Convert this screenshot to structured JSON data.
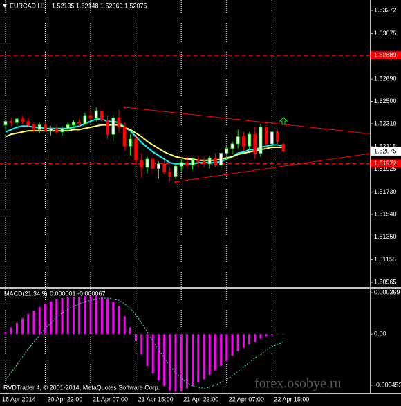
{
  "chart_data": [
    {
      "type": "candlestick",
      "title": "EURCAD,H1",
      "categories": [
        "18 Apr 2014",
        null,
        null,
        null,
        null,
        null,
        null,
        "20 Apr 23:00",
        null,
        null,
        null,
        null,
        null,
        null,
        null,
        "21 Apr 07:00",
        null,
        null,
        null,
        null,
        null,
        null,
        null,
        "21 Apr 15:00",
        null,
        null,
        null,
        null,
        null,
        null,
        null,
        "21 Apr 23:00",
        null,
        null,
        null,
        null,
        null,
        null,
        null,
        "22 Apr 07:00",
        null,
        null,
        null,
        null,
        null,
        null,
        null,
        "22 Apr 15:00",
        null,
        null
      ],
      "open": [
        1.523,
        1.5233,
        1.5232,
        1.5235,
        1.5233,
        1.523,
        1.5226,
        1.523,
        1.5225,
        1.5227,
        1.5224,
        1.5227,
        1.523,
        1.5232,
        1.5231,
        1.5238,
        1.5236,
        1.5242,
        1.5234,
        1.5222,
        1.5236,
        1.5228,
        1.5212,
        1.5218,
        1.52,
        1.5194,
        1.5201,
        1.5193,
        1.5197,
        1.519,
        1.5186,
        1.5195,
        1.5198,
        1.5196,
        1.52,
        1.5199,
        1.5197,
        1.5202,
        1.5196,
        1.5206,
        1.521,
        1.5214,
        1.522,
        1.5212,
        1.5222,
        1.5206,
        1.5228,
        1.5214,
        1.5224,
        1.52135
      ],
      "high": [
        1.5234,
        1.5236,
        1.5236,
        1.5237,
        1.5236,
        1.5232,
        1.5232,
        1.5233,
        1.5229,
        1.523,
        1.5229,
        1.5232,
        1.5234,
        1.5235,
        1.524,
        1.5244,
        1.5245,
        1.5247,
        1.5238,
        1.5238,
        1.5243,
        1.5232,
        1.5222,
        1.5221,
        1.5206,
        1.5203,
        1.5205,
        1.5199,
        1.52,
        1.5194,
        1.5197,
        1.5201,
        1.5203,
        1.5202,
        1.5204,
        1.5203,
        1.5204,
        1.5206,
        1.5208,
        1.5212,
        1.5216,
        1.5226,
        1.5224,
        1.5224,
        1.5228,
        1.5231,
        1.523,
        1.5227,
        1.5226,
        1.52148
      ],
      "low": [
        1.5226,
        1.5229,
        1.523,
        1.5231,
        1.5228,
        1.5224,
        1.5223,
        1.5224,
        1.5221,
        1.5222,
        1.5221,
        1.5225,
        1.5227,
        1.5229,
        1.523,
        1.5234,
        1.5233,
        1.5232,
        1.5218,
        1.5216,
        1.5224,
        1.5208,
        1.5204,
        1.5196,
        1.5185,
        1.5189,
        1.519,
        1.5184,
        1.5188,
        1.5182,
        1.5184,
        1.5191,
        1.5193,
        1.5192,
        1.5194,
        1.5194,
        1.5193,
        1.5194,
        1.5193,
        1.52,
        1.5205,
        1.521,
        1.5208,
        1.5209,
        1.5201,
        1.5203,
        1.521,
        1.5211,
        1.5212,
        1.52069
      ],
      "close": [
        1.5233,
        1.5232,
        1.5235,
        1.5233,
        1.523,
        1.5226,
        1.523,
        1.5225,
        1.5227,
        1.5224,
        1.5227,
        1.523,
        1.5232,
        1.5231,
        1.5238,
        1.5236,
        1.5242,
        1.5234,
        1.5222,
        1.5236,
        1.5228,
        1.5212,
        1.5218,
        1.52,
        1.5194,
        1.5201,
        1.5193,
        1.5197,
        1.519,
        1.5186,
        1.5195,
        1.5198,
        1.5196,
        1.52,
        1.5199,
        1.5197,
        1.5202,
        1.5196,
        1.5206,
        1.521,
        1.5214,
        1.522,
        1.5212,
        1.5222,
        1.5206,
        1.5228,
        1.5214,
        1.5224,
        1.5216,
        1.52075
      ],
      "bull_color": "#00ff00",
      "bear_color": "#ff0000",
      "series": [
        {
          "color": "#00ffff",
          "values": [
            1.5224,
            1.5226,
            1.5228,
            1.5229,
            1.5229,
            1.5228,
            1.5228,
            1.5227,
            1.5227,
            1.5227,
            1.5227,
            1.5227,
            1.5228,
            1.5229,
            1.5231,
            1.5233,
            1.5235,
            1.5235,
            1.5233,
            1.5233,
            1.5232,
            1.5228,
            1.5225,
            1.522,
            1.5215,
            1.5211,
            1.5207,
            1.5204,
            1.5201,
            1.5198,
            1.5197,
            1.5197,
            1.5197,
            1.5197,
            1.5198,
            1.5198,
            1.5198,
            1.5198,
            1.5199,
            1.5201,
            1.5203,
            1.5206,
            1.5207,
            1.5209,
            1.5209,
            1.5211,
            1.5212,
            1.5213,
            1.5213,
            1.5212
          ]
        },
        {
          "color": "#ffff66",
          "values": [
            1.522,
            1.5222,
            1.5223,
            1.5224,
            1.5225,
            1.5225,
            1.5225,
            1.5225,
            1.5225,
            1.5225,
            1.5225,
            1.5225,
            1.5226,
            1.5226,
            1.5227,
            1.5228,
            1.5229,
            1.523,
            1.523,
            1.523,
            1.523,
            1.5228,
            1.5226,
            1.5223,
            1.522,
            1.5216,
            1.5213,
            1.521,
            1.5207,
            1.5205,
            1.5203,
            1.5202,
            1.5201,
            1.5201,
            1.52,
            1.52,
            1.52,
            1.52,
            1.5201,
            1.5202,
            1.5203,
            1.5205,
            1.5206,
            1.5207,
            1.5208,
            1.5209,
            1.521,
            1.5211,
            1.5211,
            1.5211
          ]
        }
      ],
      "levels": [
        1.52889,
        1.51972
      ],
      "level_color": "#ff0000",
      "trendlines": [
        {
          "color": "#ff0000",
          "points": [
            [
              21,
              1.5245
            ],
            [
              46,
              1.5232
            ]
          ]
        },
        {
          "color": "#ff0000",
          "points": [
            [
              30,
              1.51817
            ],
            [
              39,
              1.5188
            ]
          ]
        }
      ],
      "ylim": [
        1.50924,
        1.5336
      ],
      "yticks": [
        1.53272,
        1.53075,
        {
          "value": 1.5269,
          "label": "1.52690"
        },
        {
          "value": 1.525,
          "label": "1.52500"
        },
        {
          "value": 1.5231,
          "label": "1.52310"
        },
        1.52115,
        1.51925,
        {
          "value": 1.5173,
          "label": "1.51730"
        },
        {
          "value": 1.5154,
          "label": "1.51540"
        },
        {
          "value": 1.5135,
          "label": "1.51350"
        },
        1.51155,
        1.50965
      ],
      "grid": false,
      "xgrid": true
    },
    {
      "type": "bar",
      "title": "MACD(21,34,9)",
      "series": [
        {
          "color": "#ff00ff",
          "values": [
            2e-05,
            6e-05,
            0.0001,
            0.00014,
            0.00018,
            0.00021,
            0.00024,
            0.00027,
            0.00029,
            0.00031,
            0.00032,
            0.00033,
            0.00033,
            0.00033,
            0.00034,
            0.00034,
            0.00034,
            0.00033,
            0.00031,
            0.00029,
            0.00025,
            0.00016,
            6e-05,
            -6e-05,
            -0.00018,
            -0.00028,
            -0.00035,
            -0.00041,
            -0.00046,
            -0.0005,
            -0.00051,
            -0.0005,
            -0.00048,
            -0.00046,
            -0.00043,
            -0.0004,
            -0.00036,
            -0.00032,
            -0.00028,
            -0.00024,
            -0.00019,
            -0.00015,
            -0.00012,
            -9e-05,
            -7e-05,
            -4e-05,
            -2e-05,
            -1e-05,
            1e-06,
            1e-06
          ]
        },
        {
          "color": "#40e0d0",
          "dashed": true,
          "values": [
            -0.0004,
            -0.00034,
            -0.00027,
            -0.0002,
            -0.00013,
            -7e-05,
            -1e-05,
            5e-05,
            0.0001,
            0.00015,
            0.00019,
            0.00022,
            0.00025,
            0.00027,
            0.00029,
            0.0003,
            0.00031,
            0.00032,
            0.00032,
            0.00031,
            0.0003,
            0.00027,
            0.00023,
            0.00017,
            0.0001,
            2e-05,
            -6e-05,
            -0.00014,
            -0.00021,
            -0.00028,
            -0.00034,
            -0.00039,
            -0.00043,
            -0.00046,
            -0.00047,
            -0.00048,
            -0.00047,
            -0.00045,
            -0.00043,
            -0.0004,
            -0.00037,
            -0.00033,
            -0.00029,
            -0.00025,
            -0.00021,
            -0.00018,
            -0.00014,
            -0.00011,
            -9e-05,
            -6.7e-05
          ]
        }
      ],
      "ylim": [
        -0.00052,
        0.0004
      ],
      "yticks": [
        0.000369,
        {
          "value": 0,
          "label": "0.00"
        },
        -0.000452
      ]
    }
  ],
  "copyright": "RVDTrader 4, © 2001-2014, MetaQuotes Software Corp.",
  "watermark": "forex.osobye.ru"
}
